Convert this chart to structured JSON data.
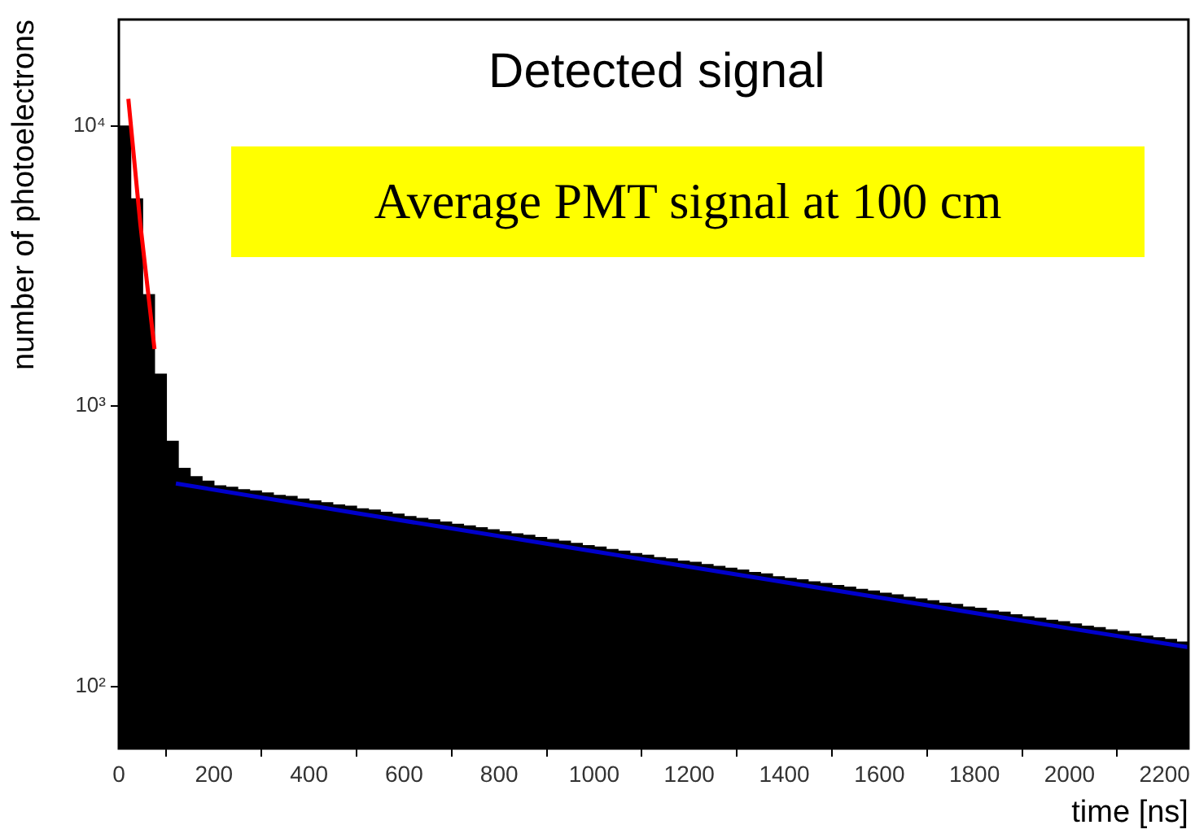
{
  "chart_data": {
    "type": "histogram",
    "title": "Detected signal",
    "xlabel": "time [ns]",
    "ylabel": "number of photoelectrons",
    "annotations": [
      "Average PMT signal at 100 cm"
    ],
    "log": "y",
    "grid": false,
    "legend": false,
    "xlim": [
      0,
      2250
    ],
    "xticks": [
      0,
      200,
      400,
      600,
      800,
      1000,
      1200,
      1400,
      1600,
      1800,
      2000,
      2200
    ],
    "ylim": [
      60,
      24000
    ],
    "yticks": [
      {
        "value": 100,
        "label": "10²"
      },
      {
        "value": 1000,
        "label": "10³"
      },
      {
        "value": 10000,
        "label": "10⁴"
      }
    ],
    "bins": [
      0,
      25,
      50,
      75,
      100,
      125,
      150,
      175,
      200,
      225,
      250,
      275,
      300,
      325,
      350,
      375,
      400,
      425,
      450,
      475,
      500,
      525,
      550,
      575,
      600,
      625,
      650,
      675,
      700,
      725,
      750,
      775,
      800,
      825,
      850,
      875,
      900,
      925,
      950,
      975,
      1000,
      1025,
      1050,
      1075,
      1100,
      1125,
      1150,
      1175,
      1200,
      1225,
      1250,
      1275,
      1300,
      1325,
      1350,
      1375,
      1400,
      1425,
      1450,
      1475,
      1500,
      1525,
      1550,
      1575,
      1600,
      1625,
      1650,
      1675,
      1700,
      1725,
      1750,
      1775,
      1800,
      1825,
      1850,
      1875,
      1900,
      1925,
      1950,
      1975,
      2000,
      2025,
      2050,
      2075,
      2100,
      2125,
      2150,
      2175,
      2200,
      2225,
      2250
    ],
    "series": [
      {
        "color": "#000000",
        "values": [
          10000,
          5500,
          2500,
          1300,
          750,
          600,
          560,
          540,
          520,
          514,
          503,
          498,
          490,
          480,
          476,
          466,
          459,
          452,
          444,
          440,
          430,
          426,
          418,
          412,
          404,
          398,
          393,
          386,
          379,
          374,
          368,
          362,
          356,
          350,
          346,
          340,
          334,
          330,
          324,
          318,
          314,
          308,
          304,
          298,
          294,
          288,
          285,
          280,
          277,
          272,
          268,
          264,
          260,
          255,
          252,
          246,
          243,
          240,
          236,
          233,
          229,
          226,
          222,
          219,
          215,
          212,
          208,
          205,
          202,
          198,
          196,
          192,
          190,
          186,
          184,
          180,
          177,
          175,
          172,
          170,
          167,
          164,
          162,
          159,
          157,
          154,
          151,
          149,
          147,
          144
        ]
      },
      {
        "type": "line",
        "color": "#ff0000",
        "x": [
          20,
          45,
          75
        ],
        "values": [
          12500,
          4500,
          1600
        ]
      },
      {
        "type": "line",
        "color": "#0000cc",
        "x": [
          120,
          500,
          1000,
          1500,
          2000,
          2250
        ],
        "values": [
          530,
          415,
          303,
          221,
          161,
          138
        ]
      }
    ]
  }
}
